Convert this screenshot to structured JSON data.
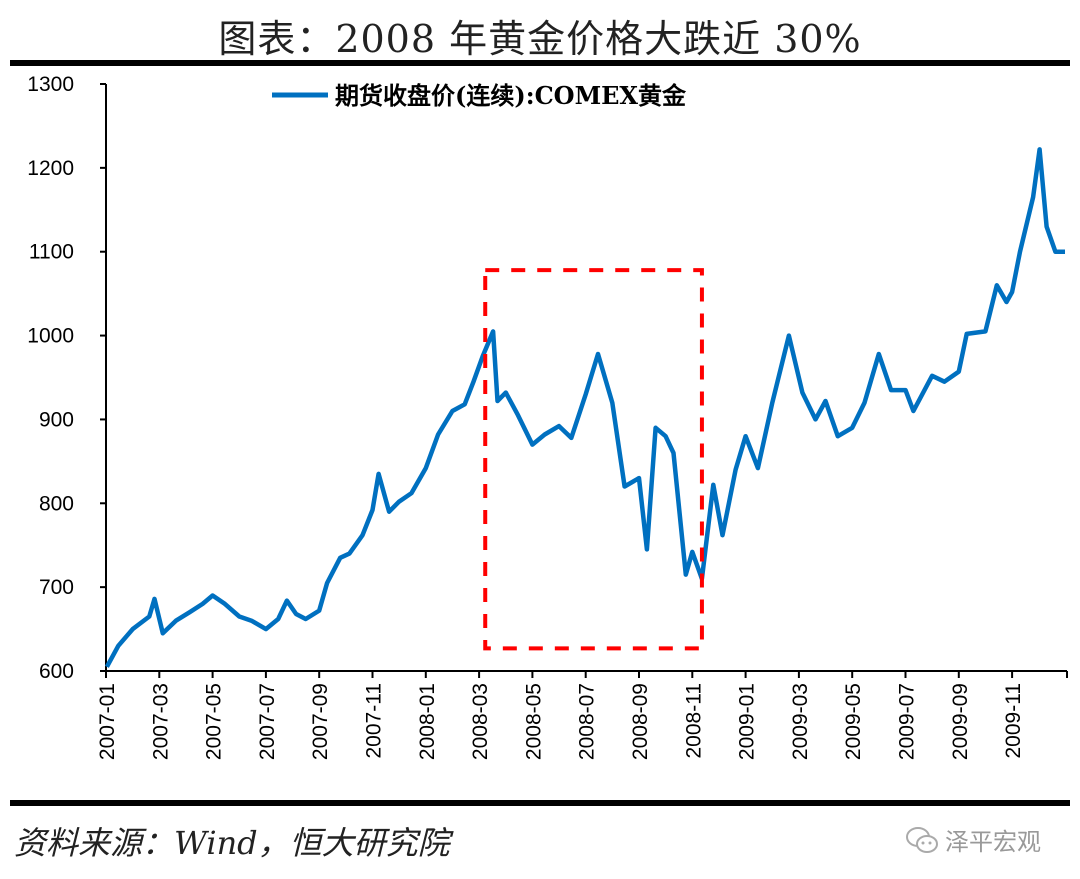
{
  "title": "图表：2008 年黄金价格大跌近 30%",
  "source": "资料来源：Wind，恒大研究院",
  "watermark": "泽平宏观",
  "chart_data": {
    "type": "line",
    "title": "图表：2008 年黄金价格大跌近 30%",
    "xlabel": "",
    "ylabel": "",
    "ylim": [
      600,
      1300
    ],
    "yticks": [
      "600",
      "700",
      "800",
      "900",
      "1000",
      "1100",
      "1200",
      "1300"
    ],
    "xlim": [
      "2007-01-01",
      "2009-12-31"
    ],
    "xticks": [
      "2007-01",
      "2007-03",
      "2007-05",
      "2007-07",
      "2007-09",
      "2007-11",
      "2008-01",
      "2008-03",
      "2008-05",
      "2008-07",
      "2008-09",
      "2008-11",
      "2009-01",
      "2009-03",
      "2009-05",
      "2009-07",
      "2009-09",
      "2009-11"
    ],
    "grid": false,
    "legend_position": "top-center",
    "series": [
      {
        "name": "期货收盘价(连续):COMEX黄金",
        "color": "#0070C0",
        "points": [
          [
            "2007-01-02",
            605
          ],
          [
            "2007-01-15",
            630
          ],
          [
            "2007-02-01",
            650
          ],
          [
            "2007-02-20",
            665
          ],
          [
            "2007-02-26",
            686
          ],
          [
            "2007-03-05",
            645
          ],
          [
            "2007-03-20",
            660
          ],
          [
            "2007-04-05",
            670
          ],
          [
            "2007-04-20",
            680
          ],
          [
            "2007-05-01",
            690
          ],
          [
            "2007-05-15",
            680
          ],
          [
            "2007-06-01",
            665
          ],
          [
            "2007-06-15",
            660
          ],
          [
            "2007-07-01",
            650
          ],
          [
            "2007-07-15",
            662
          ],
          [
            "2007-07-25",
            684
          ],
          [
            "2007-08-05",
            668
          ],
          [
            "2007-08-16",
            662
          ],
          [
            "2007-09-01",
            672
          ],
          [
            "2007-09-10",
            705
          ],
          [
            "2007-09-25",
            735
          ],
          [
            "2007-10-05",
            740
          ],
          [
            "2007-10-20",
            762
          ],
          [
            "2007-11-01",
            792
          ],
          [
            "2007-11-08",
            835
          ],
          [
            "2007-11-20",
            790
          ],
          [
            "2007-12-01",
            802
          ],
          [
            "2007-12-15",
            812
          ],
          [
            "2008-01-01",
            842
          ],
          [
            "2008-01-15",
            882
          ],
          [
            "2008-02-01",
            910
          ],
          [
            "2008-02-15",
            918
          ],
          [
            "2008-02-25",
            945
          ],
          [
            "2008-03-05",
            975
          ],
          [
            "2008-03-17",
            1005
          ],
          [
            "2008-03-22",
            922
          ],
          [
            "2008-04-01",
            932
          ],
          [
            "2008-04-15",
            905
          ],
          [
            "2008-05-01",
            870
          ],
          [
            "2008-05-15",
            882
          ],
          [
            "2008-06-01",
            892
          ],
          [
            "2008-06-15",
            878
          ],
          [
            "2008-07-01",
            930
          ],
          [
            "2008-07-15",
            978
          ],
          [
            "2008-08-01",
            920
          ],
          [
            "2008-08-15",
            820
          ],
          [
            "2008-09-01",
            830
          ],
          [
            "2008-09-10",
            745
          ],
          [
            "2008-09-20",
            890
          ],
          [
            "2008-10-01",
            880
          ],
          [
            "2008-10-10",
            860
          ],
          [
            "2008-10-24",
            715
          ],
          [
            "2008-11-01",
            742
          ],
          [
            "2008-11-12",
            710
          ],
          [
            "2008-11-25",
            822
          ],
          [
            "2008-12-05",
            762
          ],
          [
            "2008-12-20",
            840
          ],
          [
            "2009-01-01",
            880
          ],
          [
            "2009-01-15",
            842
          ],
          [
            "2009-02-01",
            920
          ],
          [
            "2009-02-20",
            1000
          ],
          [
            "2009-03-05",
            932
          ],
          [
            "2009-03-20",
            900
          ],
          [
            "2009-04-01",
            922
          ],
          [
            "2009-04-15",
            880
          ],
          [
            "2009-05-01",
            890
          ],
          [
            "2009-05-15",
            920
          ],
          [
            "2009-06-01",
            978
          ],
          [
            "2009-06-15",
            935
          ],
          [
            "2009-07-01",
            935
          ],
          [
            "2009-07-10",
            910
          ],
          [
            "2009-08-01",
            952
          ],
          [
            "2009-08-15",
            945
          ],
          [
            "2009-09-01",
            957
          ],
          [
            "2009-09-10",
            1002
          ],
          [
            "2009-10-01",
            1005
          ],
          [
            "2009-10-14",
            1060
          ],
          [
            "2009-10-25",
            1040
          ],
          [
            "2009-11-01",
            1052
          ],
          [
            "2009-11-10",
            1100
          ],
          [
            "2009-11-25",
            1165
          ],
          [
            "2009-12-02",
            1222
          ],
          [
            "2009-12-10",
            1130
          ],
          [
            "2009-12-20",
            1100
          ],
          [
            "2009-12-31",
            1100
          ]
        ]
      }
    ],
    "annotations": [
      {
        "type": "dashed-rectangle",
        "color": "#FF0000",
        "x": [
          "2008-03-08",
          "2008-11-12"
        ],
        "y": [
          627,
          1078
        ]
      }
    ]
  }
}
